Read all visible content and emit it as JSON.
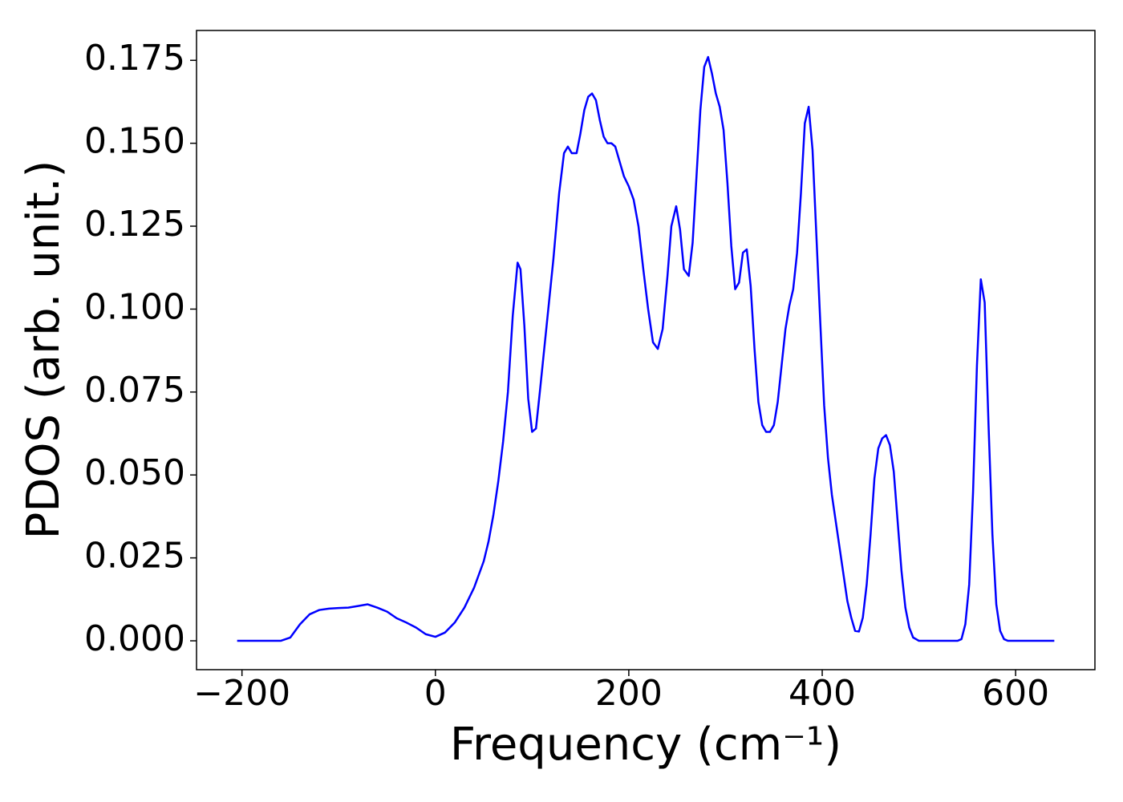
{
  "chart_data": {
    "type": "line",
    "xlabel": "Frequency (cm⁻¹)",
    "ylabel": "PDOS (arb. unit.)",
    "x": [
      -205,
      -160,
      -150,
      -140,
      -130,
      -120,
      -110,
      -100,
      -90,
      -80,
      -70,
      -60,
      -50,
      -40,
      -30,
      -20,
      -10,
      0,
      10,
      20,
      30,
      40,
      50,
      55,
      60,
      65,
      70,
      75,
      80,
      85,
      88,
      92,
      96,
      100,
      104,
      108,
      115,
      122,
      128,
      133,
      137,
      141,
      146,
      150,
      154,
      158,
      162,
      166,
      170,
      174,
      178,
      182,
      186,
      190,
      195,
      200,
      205,
      210,
      215,
      220,
      225,
      230,
      235,
      240,
      244,
      249,
      253,
      257,
      262,
      266,
      270,
      274,
      278,
      282,
      286,
      290,
      294,
      298,
      302,
      306,
      310,
      314,
      318,
      322,
      326,
      330,
      334,
      338,
      342,
      346,
      350,
      354,
      358,
      362,
      366,
      370,
      374,
      378,
      382,
      386,
      390,
      394,
      398,
      402,
      406,
      410,
      414,
      418,
      422,
      426,
      430,
      434,
      438,
      442,
      446,
      450,
      454,
      458,
      462,
      466,
      470,
      474,
      478,
      482,
      486,
      490,
      494,
      500,
      540,
      544,
      548,
      552,
      556,
      560,
      564,
      568,
      572,
      576,
      580,
      584,
      588,
      592,
      640
    ],
    "series": [
      {
        "name": "PDOS",
        "color": "#0000ff",
        "values": [
          0,
          0,
          0.001,
          0.005,
          0.008,
          0.0093,
          0.0097,
          0.0099,
          0.01,
          0.0105,
          0.011,
          0.01,
          0.0088,
          0.0068,
          0.0055,
          0.004,
          0.002,
          0.0012,
          0.0025,
          0.0055,
          0.01,
          0.016,
          0.024,
          0.03,
          0.038,
          0.048,
          0.06,
          0.075,
          0.098,
          0.114,
          0.112,
          0.095,
          0.073,
          0.063,
          0.064,
          0.075,
          0.095,
          0.115,
          0.135,
          0.147,
          0.149,
          0.147,
          0.147,
          0.153,
          0.16,
          0.164,
          0.165,
          0.163,
          0.157,
          0.152,
          0.15,
          0.15,
          0.149,
          0.145,
          0.14,
          0.137,
          0.133,
          0.125,
          0.112,
          0.1,
          0.09,
          0.088,
          0.094,
          0.11,
          0.125,
          0.131,
          0.124,
          0.112,
          0.11,
          0.12,
          0.14,
          0.16,
          0.173,
          0.176,
          0.171,
          0.165,
          0.161,
          0.154,
          0.138,
          0.119,
          0.106,
          0.108,
          0.117,
          0.118,
          0.107,
          0.088,
          0.072,
          0.065,
          0.063,
          0.063,
          0.065,
          0.072,
          0.083,
          0.094,
          0.101,
          0.106,
          0.117,
          0.135,
          0.156,
          0.161,
          0.148,
          0.122,
          0.096,
          0.071,
          0.055,
          0.044,
          0.036,
          0.028,
          0.02,
          0.012,
          0.007,
          0.003,
          0.0028,
          0.007,
          0.017,
          0.032,
          0.049,
          0.058,
          0.061,
          0.062,
          0.059,
          0.051,
          0.036,
          0.021,
          0.01,
          0.004,
          0.001,
          0,
          0,
          0.0005,
          0.005,
          0.017,
          0.045,
          0.083,
          0.109,
          0.102,
          0.065,
          0.032,
          0.011,
          0.003,
          0.0005,
          0,
          0
        ]
      }
    ],
    "xlim": [
      -247,
      682
    ],
    "ylim": [
      -0.0087,
      0.184
    ],
    "xticks": [
      {
        "value": -200,
        "label": "−200"
      },
      0,
      200,
      400,
      600
    ],
    "yticks": [
      {
        "value": 0,
        "label": "0.000"
      },
      {
        "value": 0.025,
        "label": "0.025"
      },
      {
        "value": 0.05,
        "label": "0.050"
      },
      {
        "value": 0.075,
        "label": "0.075"
      },
      {
        "value": 0.1,
        "label": "0.100"
      },
      {
        "value": 0.125,
        "label": "0.125"
      },
      {
        "value": 0.15,
        "label": "0.150"
      },
      {
        "value": 0.175,
        "label": "0.175"
      }
    ]
  }
}
